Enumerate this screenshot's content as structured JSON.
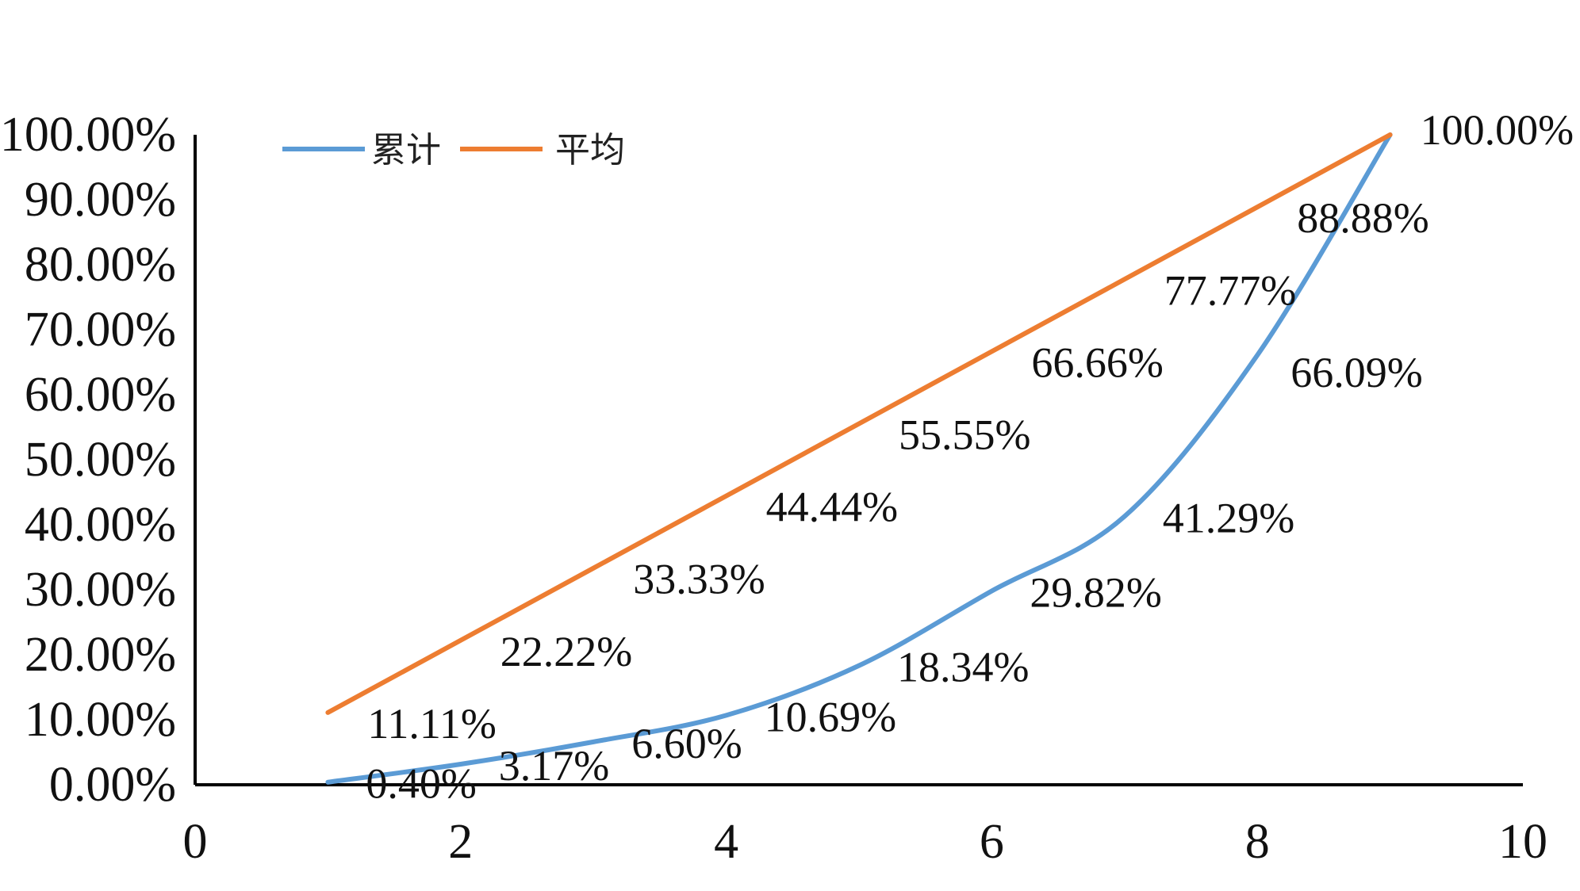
{
  "chart_data": {
    "type": "line",
    "x_axis": {
      "min": 0,
      "max": 10,
      "ticks": [
        0,
        2,
        4,
        6,
        8,
        10
      ]
    },
    "y_axis": {
      "min": 0,
      "max": 100,
      "ticks": [
        0,
        10,
        20,
        30,
        40,
        50,
        60,
        70,
        80,
        90,
        100
      ],
      "tick_labels": [
        "0.00%",
        "10.00%",
        "20.00%",
        "30.00%",
        "40.00%",
        "50.00%",
        "60.00%",
        "70.00%",
        "80.00%",
        "90.00%",
        "100.00%"
      ]
    },
    "legend": {
      "position": "top-left"
    },
    "grid": false,
    "series": [
      {
        "name": "累计",
        "color": "#5b9bd5",
        "smooth": true,
        "x": [
          1,
          2,
          3,
          4,
          5,
          6,
          7,
          8,
          9
        ],
        "values": [
          0.4,
          3.17,
          6.6,
          10.69,
          18.34,
          29.82,
          41.29,
          66.09,
          100.0
        ],
        "labels": [
          "0.40%",
          "3.17%",
          "6.60%",
          "10.69%",
          "18.34%",
          "29.82%",
          "41.29%",
          "66.09%",
          "100.00%"
        ]
      },
      {
        "name": "平均",
        "color": "#ed7d31",
        "smooth": false,
        "x": [
          1,
          2,
          3,
          4,
          5,
          6,
          7,
          8,
          9
        ],
        "values": [
          11.11,
          22.22,
          33.33,
          44.44,
          55.55,
          66.66,
          77.77,
          88.88,
          100.0
        ],
        "labels": [
          "11.11%",
          "22.22%",
          "33.33%",
          "44.44%",
          "55.55%",
          "66.66%",
          "77.77%",
          "88.88%",
          ""
        ]
      }
    ]
  }
}
